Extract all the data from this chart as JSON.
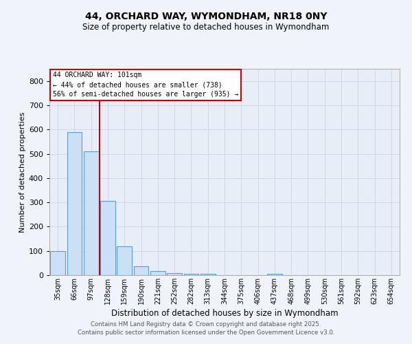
{
  "title1": "44, ORCHARD WAY, WYMONDHAM, NR18 0NY",
  "title2": "Size of property relative to detached houses in Wymondham",
  "xlabel": "Distribution of detached houses by size in Wymondham",
  "ylabel": "Number of detached properties",
  "categories": [
    "35sqm",
    "66sqm",
    "97sqm",
    "128sqm",
    "159sqm",
    "190sqm",
    "221sqm",
    "252sqm",
    "282sqm",
    "313sqm",
    "344sqm",
    "375sqm",
    "406sqm",
    "437sqm",
    "468sqm",
    "499sqm",
    "530sqm",
    "561sqm",
    "592sqm",
    "623sqm",
    "654sqm"
  ],
  "values": [
    100,
    590,
    510,
    305,
    120,
    38,
    17,
    9,
    5,
    5,
    0,
    0,
    0,
    7,
    0,
    0,
    0,
    0,
    0,
    0,
    0
  ],
  "bar_color": "#cce0f5",
  "bar_edge_color": "#5b9bd5",
  "vline_color": "#cc0000",
  "ylim": [
    0,
    850
  ],
  "yticks": [
    0,
    100,
    200,
    300,
    400,
    500,
    600,
    700,
    800
  ],
  "annotation_title": "44 ORCHARD WAY: 101sqm",
  "annotation_line2": "← 44% of detached houses are smaller (738)",
  "annotation_line3": "56% of semi-detached houses are larger (935) →",
  "annotation_box_color": "#ffffff",
  "annotation_border_color": "#cc0000",
  "grid_color": "#d0d8e8",
  "background_color": "#e8eef8",
  "fig_background_color": "#f0f4fa",
  "footer1": "Contains HM Land Registry data © Crown copyright and database right 2025.",
  "footer2": "Contains public sector information licensed under the Open Government Licence v3.0."
}
